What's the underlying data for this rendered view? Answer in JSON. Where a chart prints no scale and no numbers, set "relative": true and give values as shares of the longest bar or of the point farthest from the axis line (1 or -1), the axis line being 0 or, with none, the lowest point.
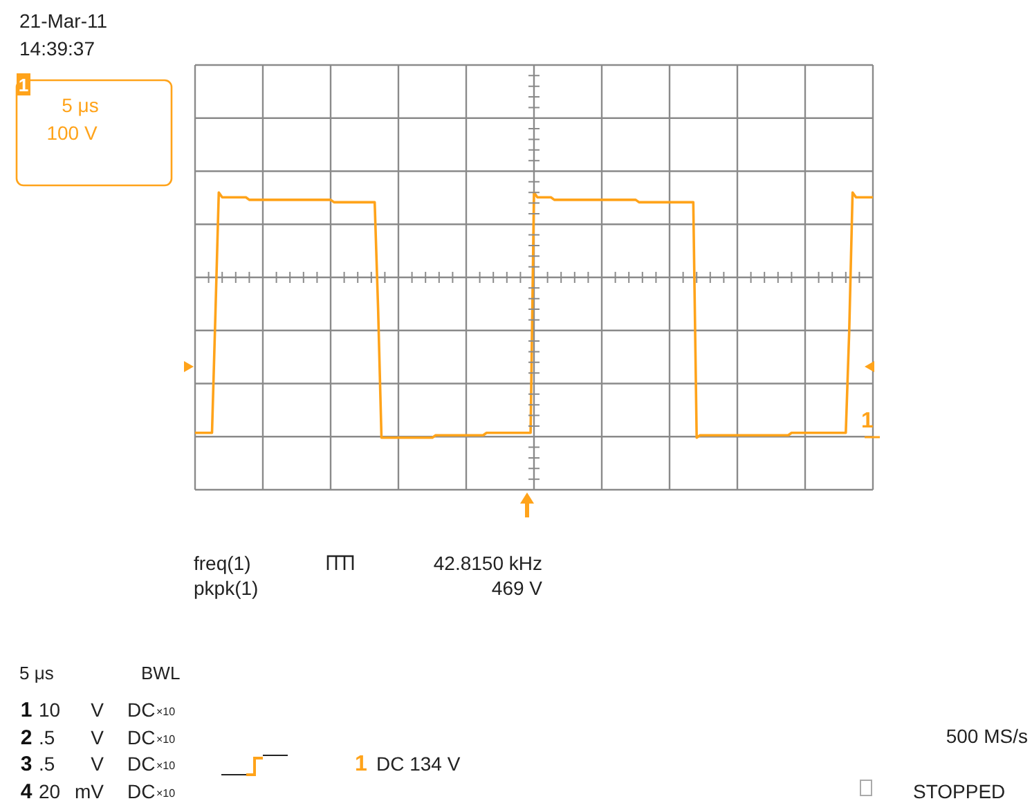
{
  "chart_data": {
    "type": "line",
    "relative": true,
    "grid": true,
    "categories": [
      null,
      null,
      null,
      null,
      null,
      null,
      null,
      null,
      null,
      null,
      null,
      null,
      null,
      null,
      null,
      null,
      null,
      null,
      null,
      null,
      null,
      null,
      null,
      null,
      null,
      null,
      null,
      null,
      null,
      null,
      null,
      null,
      null,
      null,
      null,
      null,
      null,
      null,
      null,
      null,
      null,
      null,
      null,
      null,
      null,
      null,
      null,
      null,
      null,
      null,
      null,
      null,
      null,
      null,
      null,
      null,
      null,
      null,
      null,
      null,
      null,
      null,
      null,
      null,
      null,
      null,
      null,
      null,
      null,
      null,
      null,
      null,
      null,
      null,
      null,
      null,
      null,
      null,
      null,
      null,
      null,
      null,
      null,
      null,
      null,
      null,
      null,
      null,
      null,
      null,
      null,
      null,
      null,
      null,
      null,
      null,
      null,
      null,
      null,
      null,
      null,
      null,
      null,
      null,
      null,
      null,
      null,
      null,
      null,
      null,
      null,
      null,
      null,
      null,
      null,
      null,
      null,
      null,
      null,
      null,
      null,
      null,
      null,
      null,
      null,
      null,
      null,
      null,
      null,
      null,
      null,
      null,
      null,
      null,
      null,
      null,
      null,
      null,
      null,
      null,
      null,
      null,
      null,
      null,
      null,
      null,
      null,
      null,
      null,
      null,
      null,
      null,
      null,
      null,
      null,
      null,
      null,
      null,
      null,
      null,
      null,
      null,
      null,
      null,
      null,
      null,
      null,
      null,
      null,
      null,
      null,
      null,
      null,
      null,
      null,
      null,
      null,
      null,
      null,
      null,
      null,
      null,
      null,
      null,
      null,
      null,
      null,
      null,
      null,
      null,
      null,
      null,
      null,
      null,
      null,
      null,
      null,
      null,
      null,
      null,
      null
    ],
    "series": [
      {
        "color": "#ffa31a",
        "values": [
          0.02,
          0.02,
          0.02,
          0.02,
          0.02,
          0.02,
          0.5,
          1,
          0.98,
          0.98,
          0.98,
          0.98,
          0.98,
          0.98,
          0.98,
          0.98,
          0.97,
          0.97,
          0.97,
          0.97,
          0.97,
          0.97,
          0.97,
          0.97,
          0.97,
          0.97,
          0.97,
          0.97,
          0.97,
          0.97,
          0.97,
          0.97,
          0.97,
          0.97,
          0.97,
          0.97,
          0.97,
          0.97,
          0.97,
          0.97,
          0.97,
          0.96,
          0.96,
          0.96,
          0.96,
          0.96,
          0.96,
          0.96,
          0.96,
          0.96,
          0.96,
          0.96,
          0.96,
          0.96,
          0.53,
          0,
          0,
          0,
          0,
          0,
          0,
          0,
          0,
          0,
          0,
          0,
          0,
          0,
          0,
          0,
          0,
          0.01,
          0.01,
          0.01,
          0.01,
          0.01,
          0.01,
          0.01,
          0.01,
          0.01,
          0.01,
          0.01,
          0.01,
          0.01,
          0.01,
          0.01,
          0.02,
          0.02,
          0.02,
          0.02,
          0.02,
          0.02,
          0.02,
          0.02,
          0.02,
          0.02,
          0.02,
          0.02,
          0.02,
          0.02,
          1,
          0.98,
          0.98,
          0.98,
          0.98,
          0.98,
          0.97,
          0.97,
          0.97,
          0.97,
          0.97,
          0.97,
          0.97,
          0.97,
          0.97,
          0.97,
          0.97,
          0.97,
          0.97,
          0.97,
          0.97,
          0.97,
          0.97,
          0.97,
          0.97,
          0.97,
          0.97,
          0.97,
          0.97,
          0.97,
          0.97,
          0.96,
          0.96,
          0.96,
          0.96,
          0.96,
          0.96,
          0.96,
          0.96,
          0.96,
          0.96,
          0.96,
          0.96,
          0.96,
          0.96,
          0.96,
          0.96,
          0.96,
          0,
          0.01,
          0.01,
          0.01,
          0.01,
          0.01,
          0.01,
          0.01,
          0.01,
          0.01,
          0.01,
          0.01,
          0.01,
          0.01,
          0.01,
          0.01,
          0.01,
          0.01,
          0.01,
          0.01,
          0.01,
          0.01,
          0.01,
          0.01,
          0.01,
          0.01,
          0.01,
          0.01,
          0.02,
          0.02,
          0.02,
          0.02,
          0.02,
          0.02,
          0.02,
          0.02,
          0.02,
          0.02,
          0.02,
          0.02,
          0.02,
          0.02,
          0.02,
          0.02,
          0.02,
          0.43,
          1,
          0.98,
          0.98,
          0.98,
          0.98,
          0.98,
          0.98
        ]
      }
    ],
    "annotations": [
      "21-Mar-11",
      "14:39:37",
      "1",
      "5 μs",
      "100 V",
      "freq(1)",
      "42.8150 kHz",
      "pkpk(1)",
      "469 V",
      "5 μs",
      "BWL",
      "1",
      "10",
      "V",
      "DC",
      "×10",
      "2",
      ".5",
      "V",
      "DC",
      "×10",
      "3",
      ".5",
      "V",
      "DC",
      "×10",
      "4",
      "20",
      "mV",
      "DC",
      "×10",
      "1",
      "DC 134 V",
      "500 MS/s",
      "STOPPED",
      "1"
    ]
  }
}
